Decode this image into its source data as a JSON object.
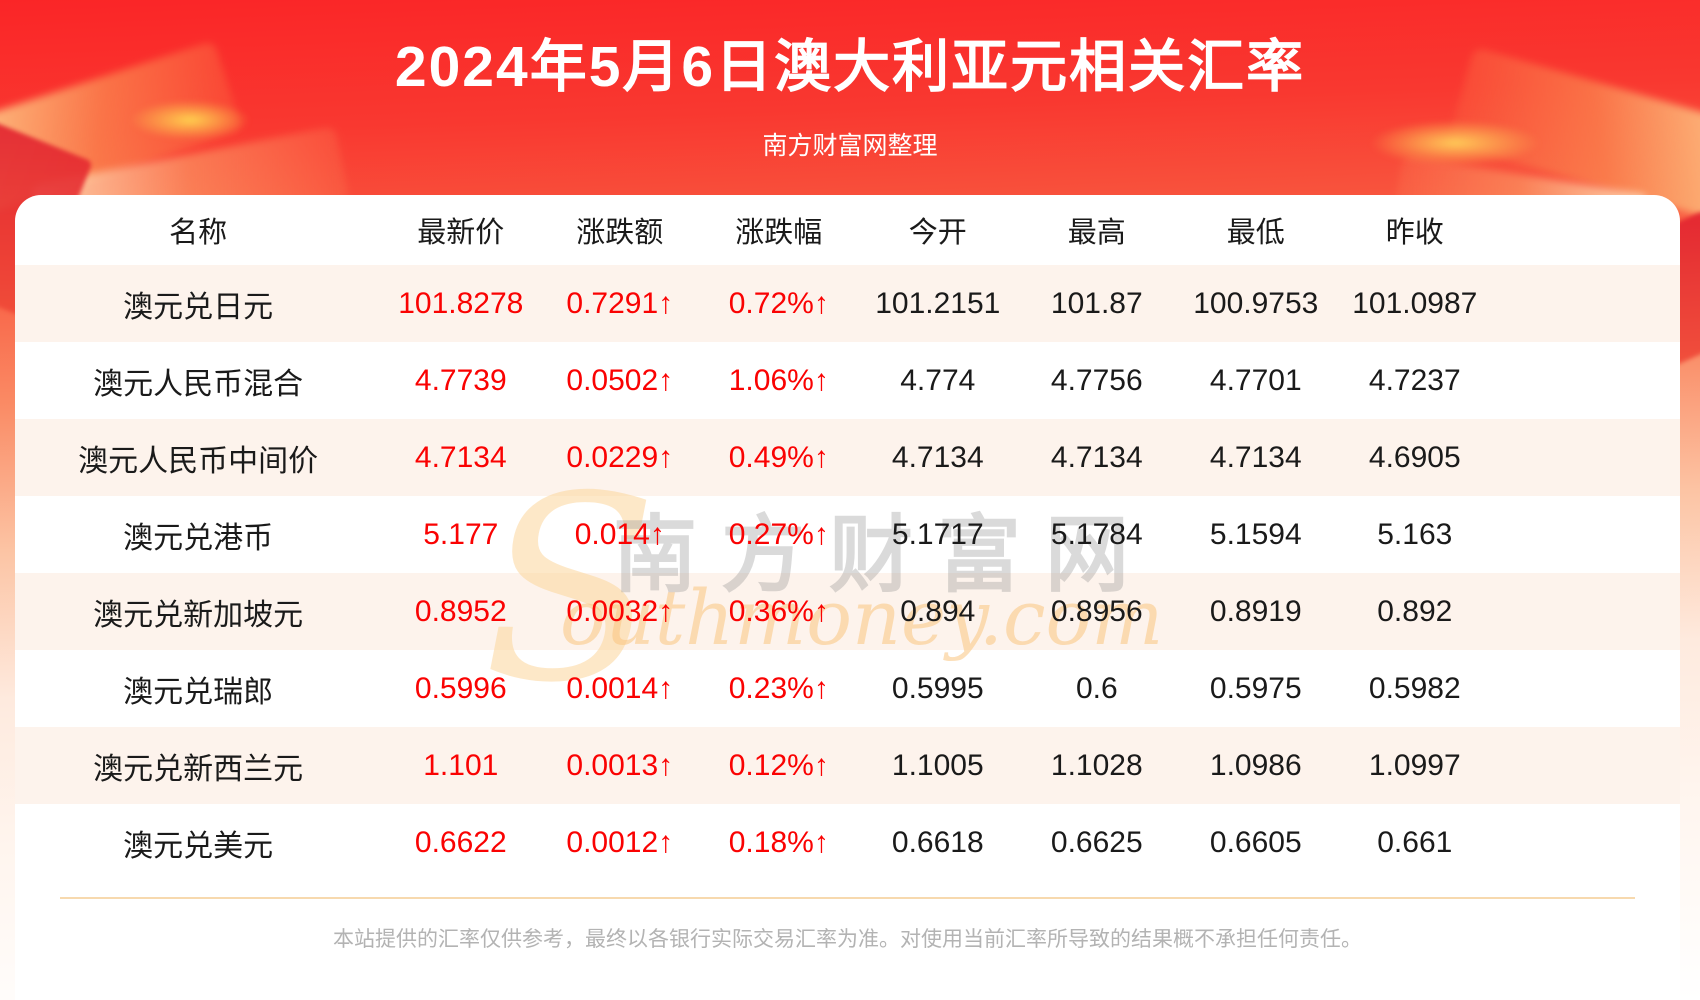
{
  "page": {
    "title": "2024年5月6日澳大利亚元相关汇率",
    "subtitle": "南方财富网整理"
  },
  "chart_data": {
    "type": "table",
    "title": "2024年5月6日澳大利亚元相关汇率",
    "columns": [
      "名称",
      "最新价",
      "涨跌额",
      "涨跌幅",
      "今开",
      "最高",
      "最低",
      "昨收"
    ],
    "rows": [
      {
        "name": "澳元兑日元",
        "latest": "101.8278",
        "change": "0.7291↑",
        "pct": "0.72%↑",
        "open": "101.2151",
        "high": "101.87",
        "low": "100.9753",
        "prev": "101.0987"
      },
      {
        "name": "澳元人民币混合",
        "latest": "4.7739",
        "change": "0.0502↑",
        "pct": "1.06%↑",
        "open": "4.774",
        "high": "4.7756",
        "low": "4.7701",
        "prev": "4.7237"
      },
      {
        "name": "澳元人民币中间价",
        "latest": "4.7134",
        "change": "0.0229↑",
        "pct": "0.49%↑",
        "open": "4.7134",
        "high": "4.7134",
        "low": "4.7134",
        "prev": "4.6905"
      },
      {
        "name": "澳元兑港币",
        "latest": "5.177",
        "change": "0.014↑",
        "pct": "0.27%↑",
        "open": "5.1717",
        "high": "5.1784",
        "low": "5.1594",
        "prev": "5.163"
      },
      {
        "name": "澳元兑新加坡元",
        "latest": "0.8952",
        "change": "0.0032↑",
        "pct": "0.36%↑",
        "open": "0.894",
        "high": "0.8956",
        "low": "0.8919",
        "prev": "0.892"
      },
      {
        "name": "澳元兑瑞郎",
        "latest": "0.5996",
        "change": "0.0014↑",
        "pct": "0.23%↑",
        "open": "0.5995",
        "high": "0.6",
        "low": "0.5975",
        "prev": "0.5982"
      },
      {
        "name": "澳元兑新西兰元",
        "latest": "1.101",
        "change": "0.0013↑",
        "pct": "0.12%↑",
        "open": "1.1005",
        "high": "1.1028",
        "low": "1.0986",
        "prev": "1.0997"
      },
      {
        "name": "澳元兑美元",
        "latest": "0.6622",
        "change": "0.0012↑",
        "pct": "0.18%↑",
        "open": "0.6618",
        "high": "0.6625",
        "low": "0.6605",
        "prev": "0.661"
      }
    ]
  },
  "watermark": {
    "s": "S",
    "cn": "南方财富网",
    "en": "outhmoney.com"
  },
  "footer": {
    "disclaimer": "本站提供的汇率仅供参考，最终以各银行实际交易汇率为准。对使用当前汇率所导致的结果概不承担任何责任。"
  },
  "colors": {
    "accent_red": "#fa0202",
    "row_stripe": "#fdf3ec",
    "header_text": "#a3a3a3",
    "banner_red": "#f92a2c",
    "divider": "#f7d9ae"
  }
}
